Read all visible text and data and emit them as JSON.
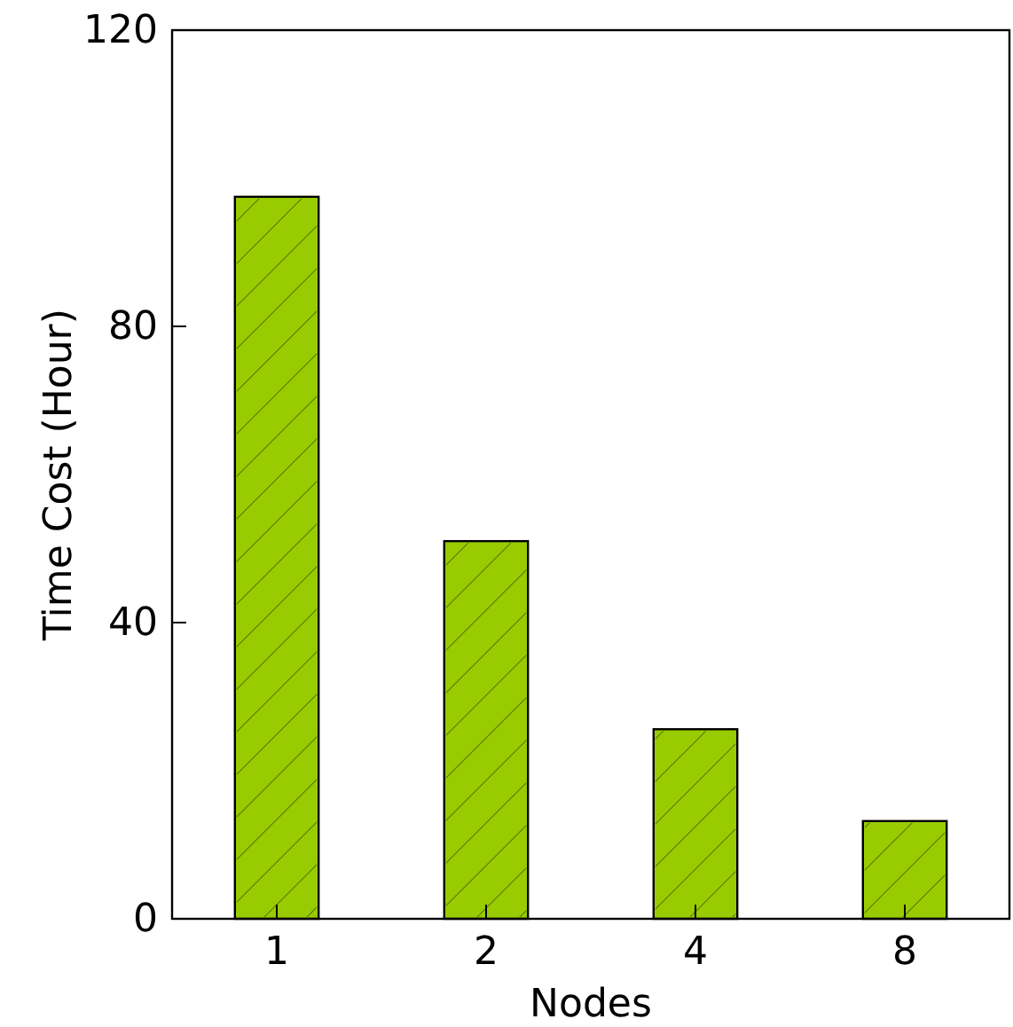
{
  "chart_data": {
    "type": "bar",
    "xlabel": "Nodes",
    "ylabel": "Time Cost (Hour)",
    "categories": [
      "1",
      "2",
      "4",
      "8"
    ],
    "values": [
      97.5,
      51,
      25.6,
      13.2
    ],
    "color": "#99cc00",
    "ylim": [
      0,
      120
    ],
    "yticks": [
      0,
      40,
      80,
      120
    ],
    "grid": false
  }
}
